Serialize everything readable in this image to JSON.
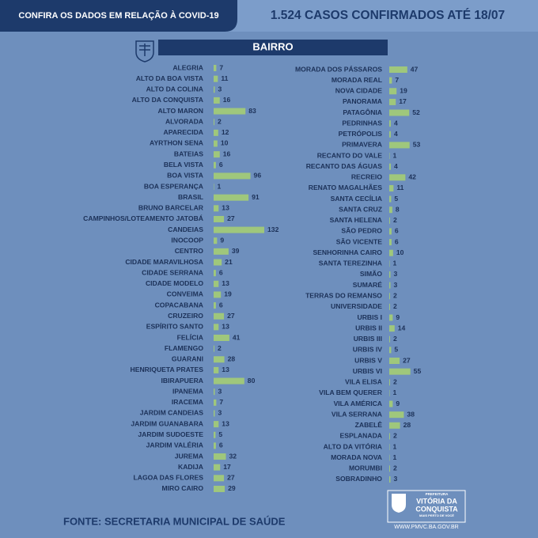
{
  "header": {
    "title": "CONFIRA OS DADOS EM RELAÇÃO À COVID-19",
    "subtitle": "1.524 CASOS CONFIRMADOS ATÉ 18/07"
  },
  "section_title": "BAIRRO",
  "source": "FONTE: SECRETARIA MUNICIPAL DE SAÚDE",
  "logo": {
    "top": "PREFEITURA",
    "name_1": "VITÓRIA DA",
    "name_2": "CONQUISTA",
    "slogan": "MAIS PERTO DE VOCÊ",
    "url": "WWW.PMVC.BA.GOV.BR"
  },
  "chart_data": [
    {
      "type": "bar",
      "color": "#9fc77c",
      "categories": [
        "ALEGRIA",
        "ALTO DA BOA VISTA",
        "ALTO DA COLINA",
        "ALTO DA CONQUISTA",
        "ALTO MARON",
        "ALVORADA",
        "APARECIDA",
        "AYRTHON SENA",
        "BATEIAS",
        "BELA VISTA",
        "BOA VISTA",
        "BOA ESPERANÇA",
        "BRASIL",
        "BRUNO BARCELAR",
        "CAMPINHOS/LOTEAMENTO JATOBÁ",
        "CANDEIAS",
        "INOCOOP",
        "CENTRO",
        "CIDADE MARAVILHOSA",
        "CIDADE SERRANA",
        "CIDADE MODELO",
        "CONVEIMA",
        "COPACABANA",
        "CRUZEIRO",
        "ESPÍRITO SANTO",
        "FELÍCIA",
        "FLAMENGO",
        "GUARANI",
        "HENRIQUETA PRATES",
        "IBIRAPUERA",
        "IPANEMA",
        "IRACEMA",
        "JARDIM CANDEIAS",
        "JARDIM GUANABARA",
        "JARDIM SUDOESTE",
        "JARDIM VALÉRIA",
        "JUREMA",
        "KADIJA",
        "LAGOA DAS FLORES",
        "MIRO CAIRO"
      ],
      "values": [
        7,
        11,
        3,
        16,
        83,
        2,
        12,
        10,
        16,
        6,
        96,
        1,
        91,
        13,
        27,
        132,
        9,
        39,
        21,
        6,
        13,
        19,
        6,
        27,
        13,
        41,
        2,
        28,
        13,
        80,
        3,
        7,
        3,
        13,
        5,
        6,
        32,
        17,
        27,
        29
      ]
    },
    {
      "type": "bar",
      "color": "#9fc77c",
      "categories": [
        "MORADA DOS PÁSSAROS",
        "MORADA REAL",
        "NOVA CIDADE",
        "PANORAMA",
        "PATAGÔNIA",
        "PEDRINHAS",
        "PETRÓPOLIS",
        "PRIMAVERA",
        "RECANTO DO VALE",
        "RECANTO DAS ÁGUAS",
        "RECREIO",
        "RENATO MAGALHÃES",
        "SANTA CECÍLIA",
        "SANTA CRUZ",
        "SANTA HELENA",
        "SÃO PEDRO",
        "SÃO VICENTE",
        "SENHORINHA CAIRO",
        "SANTA TEREZINHA",
        "SIMÃO",
        "SUMARÉ",
        "TERRAS DO REMANSO",
        "UNIVERSIDADE",
        "URBIS I",
        "URBIS II",
        "URBIS III",
        "URBIS IV",
        "URBIS V",
        "URBIS VI",
        "VILA ELISA",
        "VILA BEM QUERER",
        "VILA AMÉRICA",
        "VILA SERRANA",
        "ZABELÊ",
        "ESPLANADA",
        "ALTO DA VITÓRIA",
        "MORADA NOVA",
        "MORUMBI",
        "SOBRADINHO"
      ],
      "values": [
        47,
        7,
        19,
        17,
        52,
        4,
        4,
        53,
        1,
        4,
        42,
        11,
        5,
        8,
        2,
        6,
        6,
        10,
        1,
        3,
        3,
        2,
        2,
        9,
        14,
        2,
        5,
        27,
        55,
        2,
        1,
        9,
        38,
        28,
        2,
        1,
        1,
        2,
        3
      ]
    }
  ]
}
